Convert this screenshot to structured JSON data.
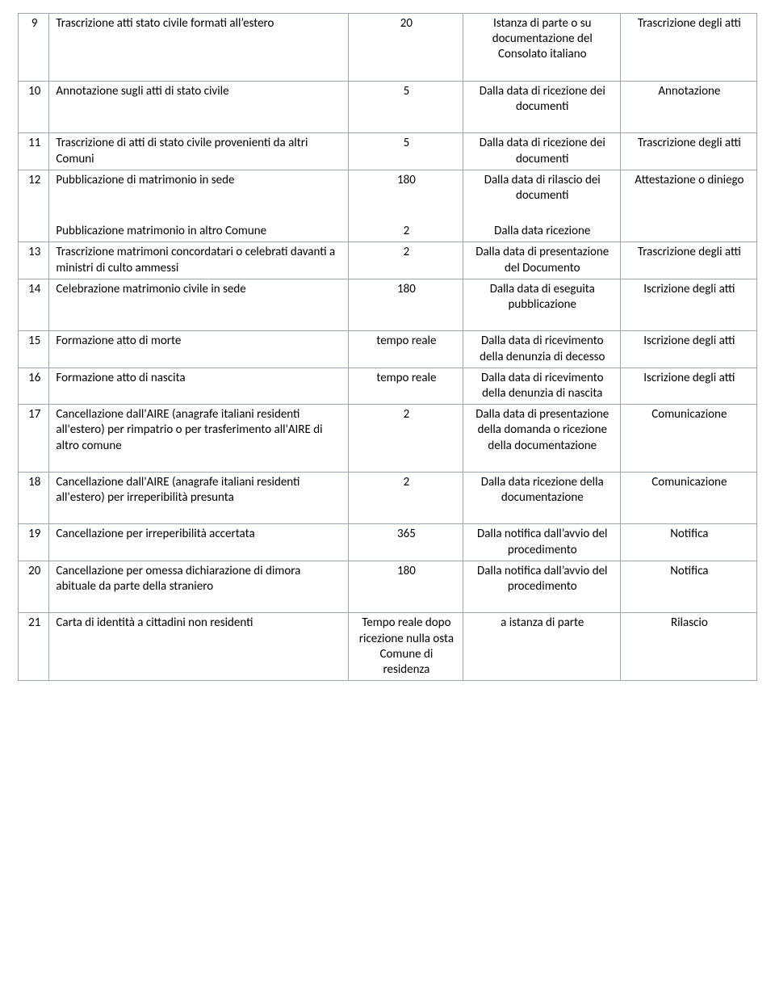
{
  "table": {
    "type": "table",
    "border_color": "#9aa7b3",
    "background_color": "#ffffff",
    "font_family": "Calibri",
    "font_size_pt": 11,
    "text_color": "#000000",
    "column_widths_pct": [
      4.2,
      40.5,
      15.5,
      21.3,
      18.5
    ],
    "column_align": [
      "center",
      "left",
      "center",
      "center",
      "center"
    ],
    "rows": [
      {
        "num": "9",
        "lines": [
          {
            "desc": "Trascrizione atti stato civile formati all’estero",
            "days": "20",
            "from": "Istanza di parte o su documentazione del Consolato italiano",
            "out": "Trascrizione degli atti"
          }
        ],
        "tall": true
      },
      {
        "num": "10",
        "lines": [
          {
            "desc": "Annotazione  sugli atti di stato civile",
            "days": "5",
            "from": "Dalla data di ricezione dei documenti",
            "out": "Annotazione"
          }
        ],
        "tall": true
      },
      {
        "num": "11",
        "lines": [
          {
            "desc": "Trascrizione di atti di stato civile provenienti da altri Comuni",
            "days": "5",
            "from": "Dalla data di ricezione dei documenti",
            "out": "Trascrizione degli atti"
          }
        ]
      },
      {
        "num": "12",
        "lines": [
          {
            "desc": "Pubblicazione di matrimonio in sede",
            "days": "180",
            "from": "Dalla data di rilascio dei documenti",
            "out": "Attestazione o diniego"
          },
          {
            "desc": "Pubblicazione matrimonio in altro Comune",
            "days": "2",
            "from": "Dalla data ricezione",
            "out": ""
          }
        ],
        "gap": true
      },
      {
        "num": "13",
        "lines": [
          {
            "desc": "Trascrizione matrimoni concordatari o celebrati davanti a ministri di culto ammessi",
            "days": "2",
            "from": "Dalla data di presentazione del Documento",
            "out": "Trascrizione degli atti"
          }
        ]
      },
      {
        "num": "14",
        "lines": [
          {
            "desc": "Celebrazione matrimonio civile in sede",
            "days": "180",
            "from": "Dalla data di eseguita pubblicazione",
            "out": "Iscrizione degli atti"
          }
        ],
        "tall": true
      },
      {
        "num": "15",
        "lines": [
          {
            "desc": "Formazione atto di morte",
            "days": "tempo reale",
            "from": "Dalla data di ricevimento della denunzia di decesso",
            "out": "Iscrizione degli atti"
          }
        ]
      },
      {
        "num": "16",
        "lines": [
          {
            "desc": "Formazione atto di nascita",
            "days": "tempo reale",
            "from": "Dalla data di ricevimento della denunzia di nascita",
            "out": "Iscrizione degli atti"
          }
        ]
      },
      {
        "num": "17",
        "lines": [
          {
            "desc": "Cancellazione dall'AIRE (anagrafe italiani residenti all'estero) per rimpatrio o per trasferimento all'AIRE di altro comune",
            "days": "2",
            "from": "Dalla data di presentazione della domanda o ricezione della documentazione",
            "out": "Comunicazione"
          }
        ],
        "tall": true
      },
      {
        "num": "18",
        "lines": [
          {
            "desc": "Cancellazione dall'AIRE (anagrafe italiani residenti all'estero) per irreperibilità presunta",
            "days": "2",
            "from": "Dalla data ricezione della documentazione",
            "out": "Comunicazione"
          }
        ],
        "tall": true
      },
      {
        "num": "19",
        "lines": [
          {
            "desc": "Cancellazione per irreperibilità accertata",
            "days": "365",
            "from": "Dalla notifica dall’avvio del procedimento",
            "out": "Notifica"
          }
        ]
      },
      {
        "num": "20",
        "lines": [
          {
            "desc": "Cancellazione per omessa dichiarazione di dimora abituale da parte della straniero",
            "days": "180",
            "from": "Dalla notifica dall’avvio del procedimento",
            "out": "Notifica"
          }
        ],
        "tall": true
      },
      {
        "num": "21",
        "lines": [
          {
            "desc": "Carta di identità a cittadini non residenti",
            "days": "Tempo reale dopo ricezione nulla osta Comune di residenza",
            "from": "a istanza di parte",
            "out": "Rilascio"
          }
        ]
      }
    ]
  }
}
